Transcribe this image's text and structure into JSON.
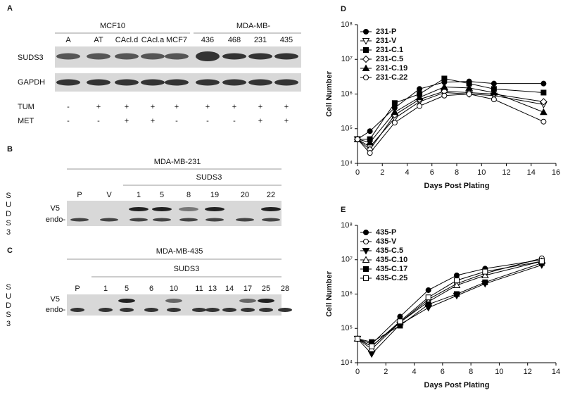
{
  "panel_a": {
    "label": "A",
    "group_labels": [
      "MCF10",
      "MDA-MB-"
    ],
    "lanes": [
      "A",
      "AT",
      "CAcl.d",
      "CAcl.a",
      "MCF7",
      "436",
      "468",
      "231",
      "435"
    ],
    "rows": [
      "SUDS3",
      "GAPDH"
    ],
    "treatments": [
      {
        "name": "TUM",
        "signs": [
          "-",
          "+",
          "+",
          "+",
          "+",
          "+",
          "+",
          "+",
          "+"
        ]
      },
      {
        "name": "MET",
        "signs": [
          "-",
          "-",
          "+",
          "+",
          "-",
          "-",
          "-",
          "+",
          "+"
        ]
      }
    ]
  },
  "panel_b": {
    "label": "B",
    "cell_line": "MDA-MB-231",
    "construct": "SUDS3",
    "side_label": "SUDS3",
    "bands": [
      "V5",
      "endo-"
    ],
    "lanes": [
      "P",
      "V",
      "1",
      "5",
      "8",
      "19",
      "20",
      "22"
    ]
  },
  "panel_c": {
    "label": "C",
    "cell_line": "MDA-MB-435",
    "construct": "SUDS3",
    "side_label": "SUDS3",
    "bands": [
      "V5",
      "endo-"
    ],
    "lanes": [
      "P",
      "1",
      "5",
      "6",
      "10",
      "11",
      "13",
      "14",
      "17",
      "25",
      "28"
    ]
  },
  "chart_data": [
    {
      "type": "line",
      "panel": "D",
      "x_label": "Days Post Plating",
      "y_label": "Cell Number",
      "log_y": true,
      "legend": "upper left",
      "x": [
        0,
        1,
        3,
        5,
        7,
        9,
        11,
        15
      ],
      "xlim": [
        0,
        16
      ],
      "xticks": [
        0,
        2,
        4,
        6,
        8,
        10,
        12,
        14,
        16
      ],
      "ylim": [
        10000,
        100000000
      ],
      "yticks": [
        {
          "value": 10000,
          "label": "10⁴"
        },
        {
          "value": 100000,
          "label": "10⁵"
        },
        {
          "value": 1000000,
          "label": "10⁶"
        },
        {
          "value": 10000000,
          "label": "10⁷"
        },
        {
          "value": 100000000,
          "label": "10⁸"
        }
      ],
      "series": [
        {
          "name": "231-P",
          "color": "#000000",
          "marker": "circle-filled",
          "values": [
            50000,
            85000,
            400000,
            1400000,
            2200000,
            2300000,
            2000000,
            2000000
          ]
        },
        {
          "name": "231-V",
          "color": "#000000",
          "marker": "triangle-down-open",
          "values": [
            50000,
            30000,
            200000,
            600000,
            1100000,
            1000000,
            900000,
            500000
          ]
        },
        {
          "name": "231-C.1",
          "color": "#000000",
          "marker": "square-filled",
          "values": [
            50000,
            50000,
            550000,
            1000000,
            2800000,
            2000000,
            1400000,
            1100000
          ]
        },
        {
          "name": "231-C.5",
          "color": "#000000",
          "marker": "diamond-open",
          "values": [
            50000,
            25000,
            250000,
            700000,
            1200000,
            1100000,
            1000000,
            600000
          ]
        },
        {
          "name": "231-C.19",
          "color": "#000000",
          "marker": "triangle-up-filled",
          "values": [
            50000,
            40000,
            300000,
            800000,
            1600000,
            1500000,
            1100000,
            300000
          ]
        },
        {
          "name": "231-C.22",
          "color": "#000000",
          "marker": "circle-open",
          "values": [
            50000,
            20000,
            150000,
            450000,
            900000,
            1000000,
            700000,
            160000
          ]
        }
      ]
    },
    {
      "type": "line",
      "panel": "E",
      "x_label": "Days Post Plating",
      "y_label": "Cell Number",
      "log_y": true,
      "legend": "upper left",
      "x": [
        0,
        1,
        3,
        5,
        7,
        9,
        13
      ],
      "xlim": [
        0,
        14
      ],
      "xticks": [
        0,
        2,
        4,
        6,
        8,
        10,
        12,
        14
      ],
      "ylim": [
        10000,
        100000000
      ],
      "yticks": [
        {
          "value": 10000,
          "label": "10⁴"
        },
        {
          "value": 100000,
          "label": "10⁵"
        },
        {
          "value": 1000000,
          "label": "10⁶"
        },
        {
          "value": 10000000,
          "label": "10⁷"
        },
        {
          "value": 100000000,
          "label": "10⁸"
        }
      ],
      "series": [
        {
          "name": "435-P",
          "color": "#000000",
          "marker": "circle-filled",
          "values": [
            50000,
            35000,
            220000,
            1300000,
            3500000,
            5500000,
            10000000
          ]
        },
        {
          "name": "435-V",
          "color": "#000000",
          "marker": "circle-open",
          "values": [
            50000,
            30000,
            150000,
            700000,
            2000000,
            4000000,
            11000000
          ]
        },
        {
          "name": "435-C.5",
          "color": "#000000",
          "marker": "triangle-down-filled",
          "values": [
            50000,
            18000,
            130000,
            400000,
            900000,
            2000000,
            7000000
          ]
        },
        {
          "name": "435-C.10",
          "color": "#000000",
          "marker": "triangle-up-open",
          "values": [
            50000,
            25000,
            150000,
            600000,
            1800000,
            3500000,
            9000000
          ]
        },
        {
          "name": "435-C.17",
          "color": "#000000",
          "marker": "square-filled",
          "values": [
            50000,
            40000,
            120000,
            500000,
            1000000,
            2200000,
            8000000
          ]
        },
        {
          "name": "435-C.25",
          "color": "#000000",
          "marker": "square-open",
          "values": [
            50000,
            30000,
            160000,
            800000,
            2500000,
            4500000,
            9000000
          ]
        }
      ]
    }
  ]
}
